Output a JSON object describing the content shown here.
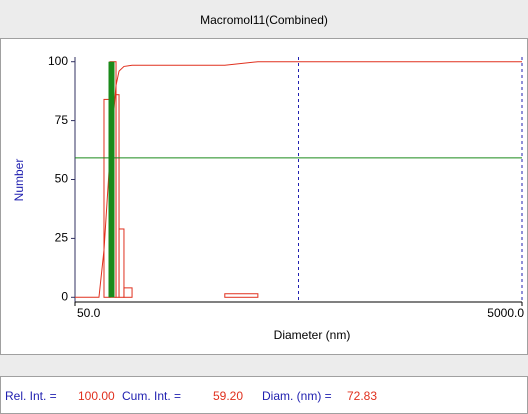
{
  "chart_data": {
    "type": "histogram",
    "title": "Macromol11(Combined)",
    "x_label": "Diameter (nm)",
    "y_label": "Number",
    "xlog": true,
    "xlim": [
      50,
      5000
    ],
    "xticks": [
      {
        "value": 50,
        "label": "50.0"
      },
      {
        "value": 5000,
        "label": "5000.0"
      }
    ],
    "xgrid": [
      500,
      5000
    ],
    "ylim": [
      -2,
      102
    ],
    "yticks": [
      0,
      25,
      50,
      75,
      100
    ],
    "color": "#e0301e",
    "bins": [
      67.4,
      71.7,
      76.3,
      78.7,
      82.8,
      90.0,
      234,
      329
    ],
    "counts": [
      84,
      100,
      86,
      29,
      4,
      0,
      1.5
    ],
    "cumulative": {
      "color": "#e0301e",
      "x": [
        50,
        64,
        67.4,
        71.7,
        76.3,
        78.7,
        82.8,
        90,
        234,
        329,
        5000
      ],
      "values": [
        0,
        0,
        20,
        60,
        90,
        96,
        98,
        98.5,
        98.5,
        100,
        100
      ]
    },
    "cursor": {
      "color": "#1a8a1a",
      "labels": [
        "Rel. Int. =",
        "Cum. Int. =",
        "Diam. (nm) ="
      ],
      "values": [
        100,
        59.2,
        72.83
      ],
      "value_labels": [
        "100.00",
        "59.20",
        "72.83"
      ]
    }
  }
}
